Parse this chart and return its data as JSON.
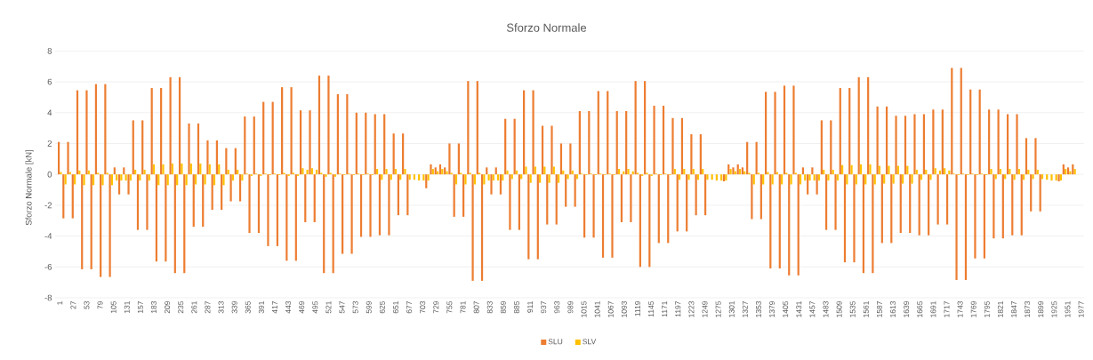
{
  "chart_data": {
    "type": "bar",
    "title": "Sforzo Normale",
    "ylabel": "Sforzo Normale [kN]",
    "x": [
      1,
      10,
      19,
      28,
      37,
      46,
      55,
      64,
      73,
      82,
      91,
      100,
      109,
      118,
      127,
      136,
      145,
      154,
      163,
      172,
      181,
      190,
      199,
      208,
      217,
      226,
      235,
      244,
      253,
      262,
      271,
      280,
      289,
      298,
      307,
      316,
      325,
      334,
      343,
      352,
      361,
      370,
      379,
      388,
      397,
      406,
      415,
      424,
      433,
      442,
      451,
      460,
      469,
      478,
      487,
      496,
      505,
      514,
      523,
      532,
      541,
      550,
      559,
      568,
      577,
      586,
      595,
      604,
      613,
      622,
      631,
      640,
      649,
      658,
      667,
      676,
      685,
      694,
      703,
      712,
      721,
      730,
      739,
      748,
      757,
      766,
      775,
      784,
      793,
      802,
      811,
      820,
      829,
      838,
      847,
      856,
      865,
      874,
      883,
      892,
      901,
      910,
      919,
      928,
      937,
      946,
      955,
      964,
      973,
      982,
      991,
      1000,
      1009,
      1018,
      1027,
      1036,
      1045,
      1054,
      1063,
      1072,
      1081,
      1090,
      1099,
      1108,
      1117,
      1126,
      1135,
      1144,
      1153,
      1162,
      1171,
      1180,
      1189,
      1198,
      1207,
      1216,
      1225,
      1234,
      1243,
      1252,
      1261,
      1270,
      1279,
      1288,
      1297,
      1306,
      1315,
      1324,
      1333,
      1342,
      1351,
      1360,
      1369,
      1378,
      1387,
      1396,
      1405,
      1414,
      1423,
      1432,
      1441,
      1450,
      1459,
      1468,
      1477,
      1486,
      1495,
      1504,
      1513,
      1522,
      1531,
      1540,
      1549,
      1558,
      1567,
      1576,
      1585,
      1594,
      1603,
      1612,
      1621,
      1630,
      1639,
      1648,
      1657,
      1666,
      1675,
      1684,
      1693,
      1702,
      1711,
      1720,
      1729,
      1738,
      1747,
      1756,
      1765,
      1774,
      1783,
      1792,
      1801,
      1810,
      1819,
      1828,
      1837,
      1846,
      1855,
      1864,
      1873,
      1882,
      1891,
      1900,
      1909,
      1918,
      1927,
      1936,
      1945,
      1954,
      1963
    ],
    "series": [
      {
        "name": "SLU",
        "color": "#ed7d31",
        "values": [
          2.1,
          -2.85,
          2.1,
          -2.85,
          5.45,
          -6.15,
          5.45,
          -6.15,
          5.85,
          -6.65,
          5.85,
          -6.65,
          0.45,
          -1.3,
          0.45,
          -1.3,
          3.5,
          -3.6,
          3.5,
          -3.6,
          5.6,
          -5.65,
          5.6,
          -5.65,
          6.3,
          -6.4,
          6.3,
          -6.4,
          3.3,
          -3.4,
          3.3,
          -3.4,
          2.2,
          -2.3,
          2.2,
          -2.3,
          1.7,
          -1.75,
          1.7,
          -1.75,
          3.75,
          -3.8,
          3.75,
          -3.8,
          4.7,
          -4.65,
          4.7,
          -4.65,
          5.65,
          -5.6,
          5.65,
          -5.6,
          4.15,
          -3.1,
          4.15,
          -3.1,
          6.4,
          -6.4,
          6.4,
          -6.4,
          5.2,
          -5.15,
          5.2,
          -5.15,
          4.0,
          -4.05,
          4.0,
          -4.05,
          3.9,
          -3.95,
          3.9,
          -3.95,
          2.65,
          -2.65,
          2.65,
          -2.65,
          0,
          0,
          0,
          -0.9,
          0.65,
          0.45,
          0.65,
          0.45,
          2.0,
          -2.75,
          2.0,
          -2.75,
          6.05,
          -6.9,
          6.05,
          -6.9,
          0.45,
          -1.3,
          0.45,
          -1.3,
          3.6,
          -3.6,
          3.6,
          -3.6,
          5.45,
          -5.5,
          5.45,
          -5.5,
          3.15,
          -3.25,
          3.15,
          -3.25,
          2.0,
          -2.1,
          2.0,
          -2.1,
          4.1,
          -4.1,
          4.1,
          -4.1,
          5.4,
          -5.4,
          5.4,
          -5.4,
          4.1,
          -3.1,
          4.1,
          -3.1,
          6.05,
          -6.0,
          6.05,
          -6.0,
          4.45,
          -4.45,
          4.45,
          -4.45,
          3.65,
          -3.7,
          3.65,
          -3.7,
          2.6,
          -2.65,
          2.6,
          -2.65,
          0,
          0,
          0,
          -0.45,
          0.65,
          0.45,
          0.65,
          0.45,
          2.1,
          -2.9,
          2.1,
          -2.9,
          5.35,
          -6.1,
          5.35,
          -6.1,
          5.75,
          -6.55,
          5.75,
          -6.55,
          0.45,
          -1.3,
          0.45,
          -1.3,
          3.5,
          -3.6,
          3.5,
          -3.6,
          5.6,
          -5.7,
          5.6,
          -5.7,
          6.3,
          -6.4,
          6.3,
          -6.4,
          4.4,
          -4.45,
          4.4,
          -4.45,
          3.8,
          -3.8,
          3.8,
          -3.8,
          3.9,
          -3.95,
          3.9,
          -3.95,
          4.2,
          -3.25,
          4.2,
          -3.25,
          6.9,
          -6.85,
          6.9,
          -6.85,
          5.5,
          -5.45,
          5.5,
          -5.45,
          4.2,
          -4.15,
          4.2,
          -4.15,
          3.9,
          -3.95,
          3.9,
          -3.95,
          2.35,
          -2.4,
          2.35,
          -2.4,
          0,
          0,
          0,
          -0.45,
          0.65,
          0.45,
          0.65
        ]
      },
      {
        "name": "SLV",
        "color": "#ffc000",
        "values": [
          0.15,
          -0.65,
          0.15,
          -0.65,
          0.25,
          -0.7,
          0.25,
          -0.7,
          0.1,
          -0.7,
          0.1,
          -0.7,
          -0.4,
          -0.4,
          -0.4,
          -0.4,
          0.3,
          -0.4,
          0.3,
          -0.4,
          0.65,
          -0.7,
          0.65,
          -0.7,
          0.7,
          -0.7,
          0.7,
          -0.7,
          0.7,
          -0.65,
          0.7,
          -0.65,
          0.65,
          -0.7,
          0.65,
          -0.7,
          0.3,
          -0.4,
          0.3,
          -0.4,
          0.05,
          -0.1,
          0.05,
          -0.1,
          0.05,
          -0.05,
          0.05,
          -0.05,
          0.1,
          -0.1,
          0.1,
          -0.1,
          0.4,
          0.3,
          0.4,
          0.3,
          0.1,
          -0.15,
          0.1,
          -0.15,
          0.05,
          -0.05,
          0.05,
          -0.05,
          0.05,
          -0.05,
          0.05,
          -0.05,
          0.35,
          -0.35,
          0.35,
          -0.35,
          0.35,
          -0.35,
          0.35,
          -0.35,
          -0.35,
          -0.4,
          -0.4,
          -0.4,
          0.35,
          0.2,
          0.35,
          0.2,
          0.1,
          -0.65,
          0.1,
          -0.65,
          0.1,
          -0.65,
          0.1,
          -0.65,
          -0.4,
          -0.4,
          -0.4,
          -0.4,
          0.25,
          -0.3,
          0.25,
          -0.3,
          0.5,
          -0.55,
          0.5,
          -0.55,
          0.5,
          -0.55,
          0.5,
          -0.55,
          0.25,
          -0.3,
          0.25,
          -0.3,
          0.05,
          -0.05,
          0.05,
          -0.05,
          0.05,
          -0.05,
          0.05,
          -0.05,
          0.35,
          0.2,
          0.35,
          0.2,
          0.1,
          -0.1,
          0.1,
          -0.1,
          0.05,
          -0.05,
          0.05,
          -0.05,
          0.35,
          -0.35,
          0.35,
          -0.35,
          0.35,
          -0.35,
          0.35,
          -0.35,
          -0.35,
          -0.4,
          -0.4,
          -0.4,
          0.35,
          0.2,
          0.35,
          0.2,
          0.1,
          -0.65,
          0.1,
          -0.65,
          0.15,
          -0.65,
          0.15,
          -0.65,
          0.1,
          -0.65,
          0.1,
          -0.65,
          -0.4,
          -0.4,
          -0.4,
          -0.4,
          0.3,
          -0.4,
          0.3,
          -0.4,
          0.6,
          -0.65,
          0.6,
          -0.65,
          0.65,
          -0.65,
          0.65,
          -0.65,
          0.55,
          -0.6,
          0.55,
          -0.6,
          0.55,
          -0.6,
          0.55,
          -0.6,
          0.3,
          -0.35,
          0.3,
          -0.35,
          0.4,
          0.25,
          0.4,
          0.25,
          0.05,
          -0.05,
          0.05,
          -0.05,
          0.05,
          -0.05,
          0.05,
          -0.05,
          0.35,
          -0.3,
          0.35,
          -0.3,
          0.35,
          -0.35,
          0.35,
          -0.35,
          0.3,
          -0.3,
          0.3,
          -0.3,
          -0.35,
          -0.4,
          -0.4,
          -0.4,
          0.35,
          0.2,
          0.35
        ]
      }
    ],
    "xlim": [
      -8,
      1982
    ],
    "ylim": [
      -8,
      8
    ],
    "xticks": [
      1,
      27,
      53,
      79,
      105,
      131,
      157,
      183,
      209,
      235,
      261,
      287,
      313,
      339,
      365,
      391,
      417,
      443,
      469,
      495,
      521,
      547,
      573,
      599,
      625,
      651,
      677,
      703,
      729,
      755,
      781,
      807,
      833,
      859,
      885,
      911,
      937,
      963,
      989,
      1015,
      1041,
      1067,
      1093,
      1119,
      1145,
      1171,
      1197,
      1223,
      1249,
      1275,
      1301,
      1327,
      1353,
      1379,
      1405,
      1431,
      1457,
      1483,
      1509,
      1535,
      1561,
      1587,
      1613,
      1639,
      1665,
      1691,
      1717,
      1743,
      1769,
      1795,
      1821,
      1847,
      1873,
      1899,
      1925,
      1951,
      1977
    ],
    "yticks": [
      -8,
      -6,
      -4,
      -2,
      0,
      2,
      4,
      6,
      8
    ],
    "grid": "y",
    "legend": "bottom"
  }
}
